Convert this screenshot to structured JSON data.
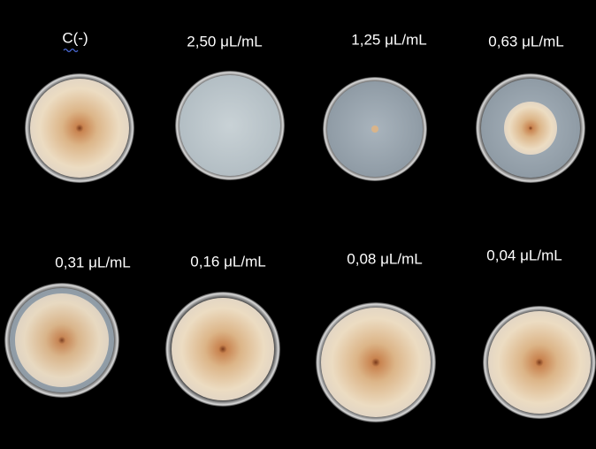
{
  "plates": [
    {
      "label": "C(-)"
    },
    {
      "label": "2,50 μL/mL"
    },
    {
      "label": "1,25 μL/mL"
    },
    {
      "label": "0,63 μL/mL"
    },
    {
      "label": "0,31 μL/mL"
    },
    {
      "label": "0,16 μL/mL"
    },
    {
      "label": "0,08 μL/mL"
    },
    {
      "label": "0,04 μL/mL"
    }
  ]
}
